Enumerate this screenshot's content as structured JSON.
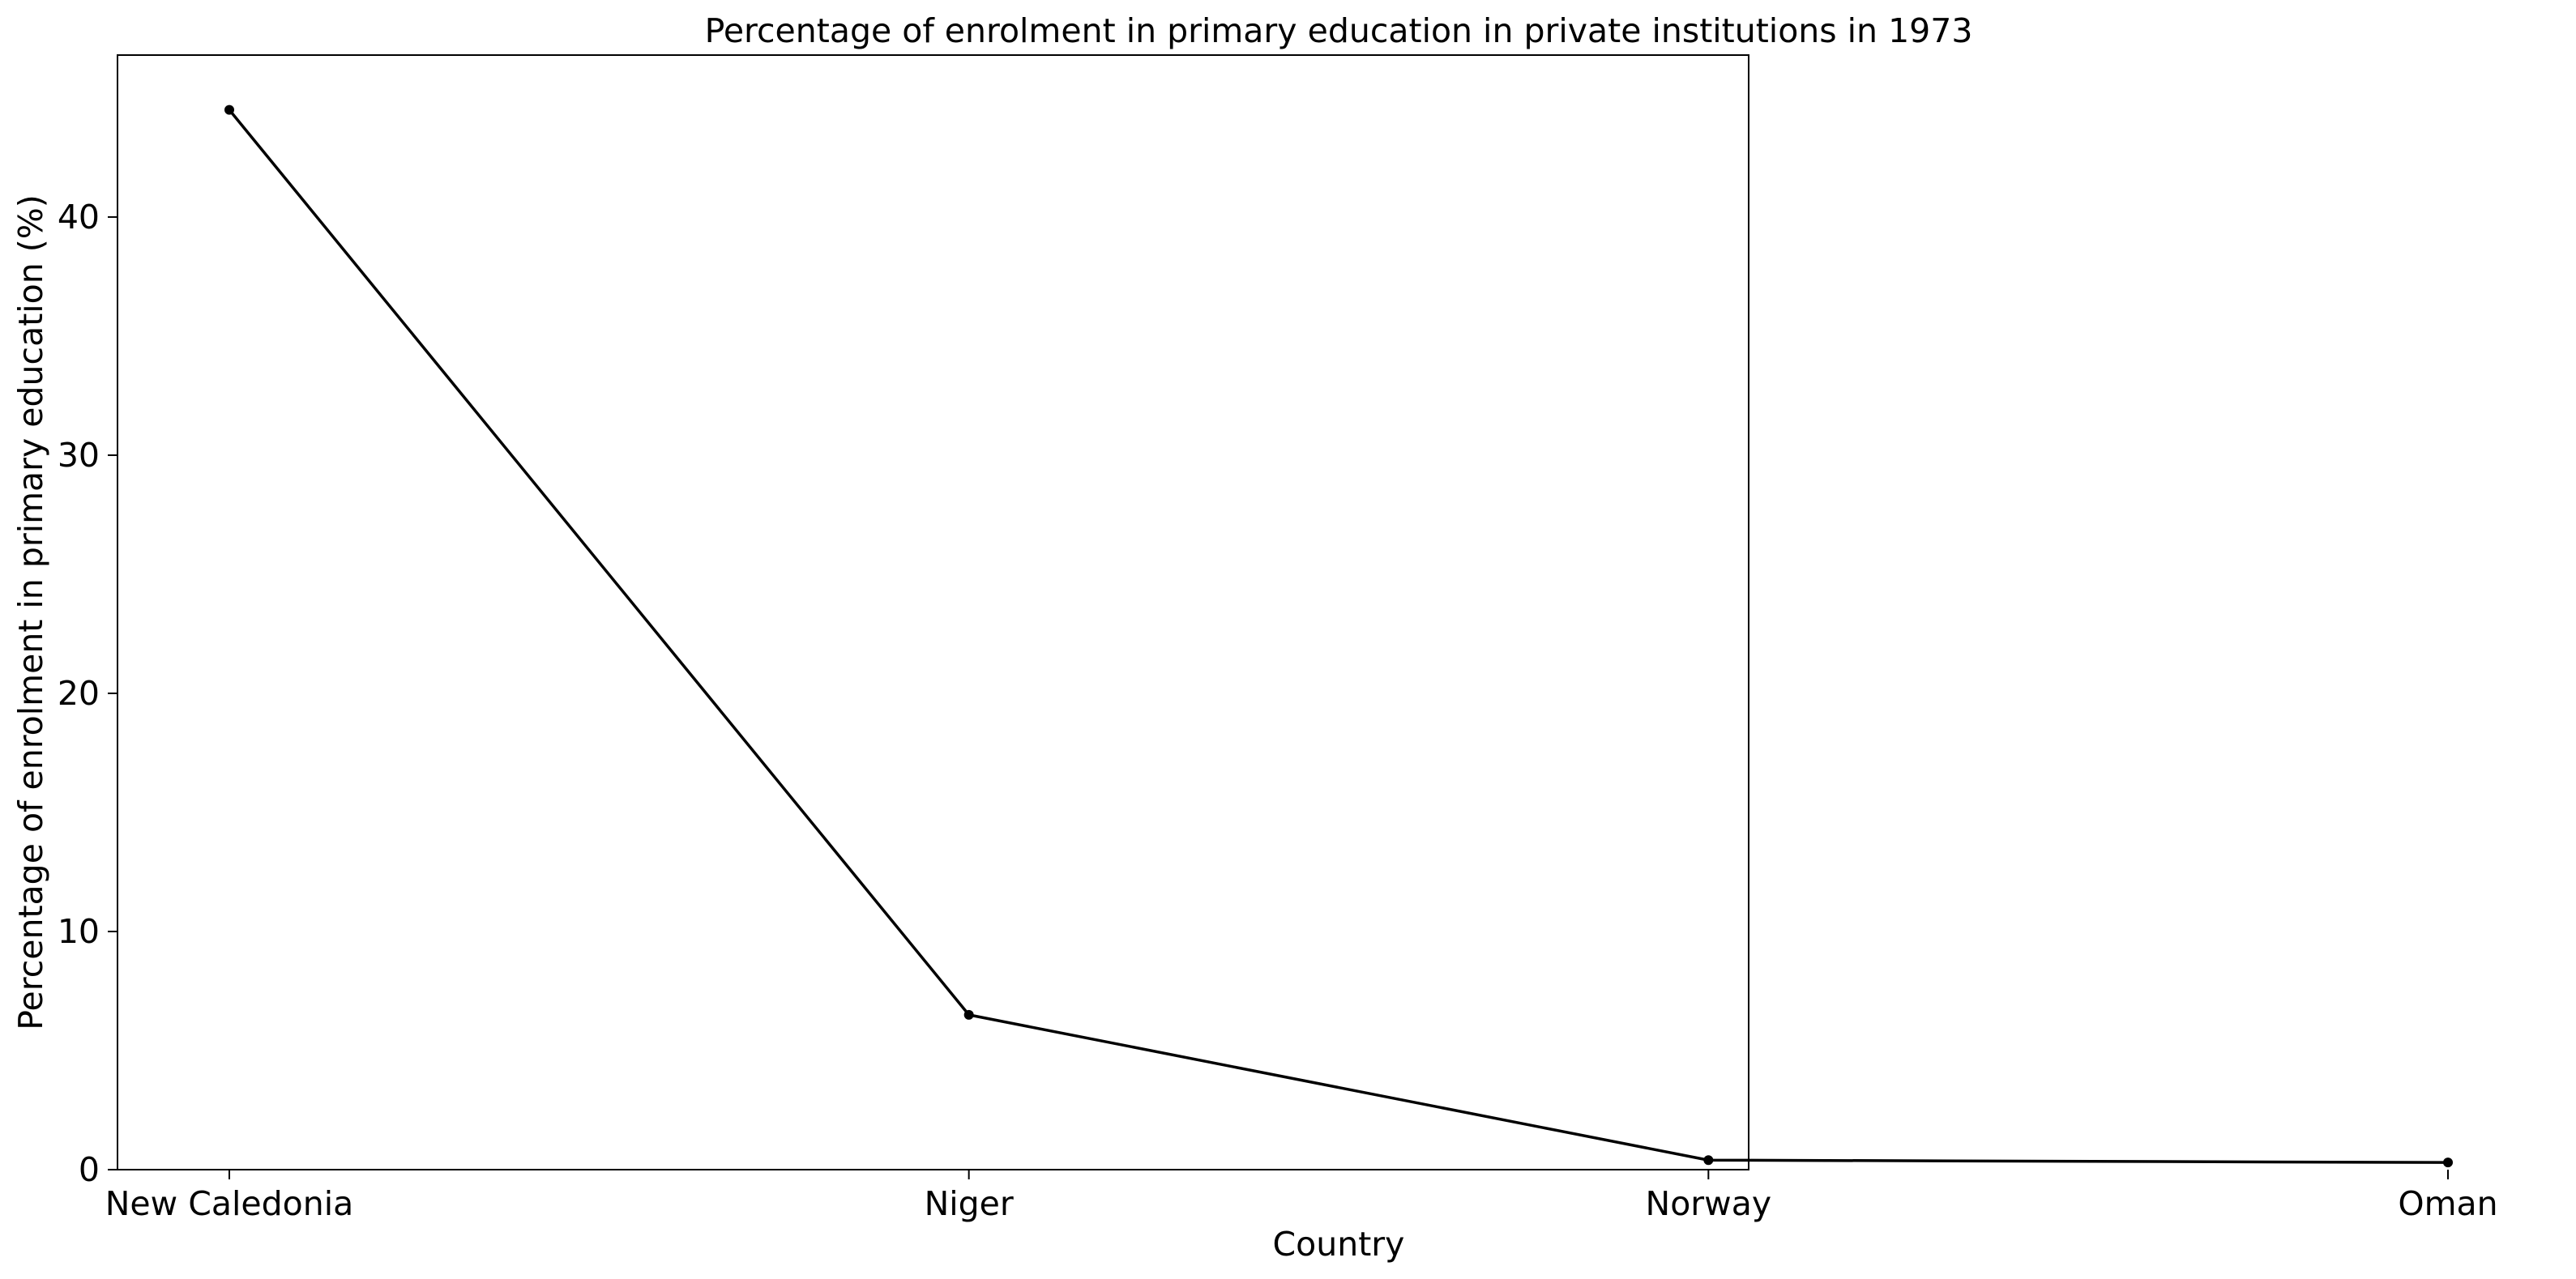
{
  "chart_data": {
    "type": "line",
    "title": "Percentage of enrolment in primary education in private institutions in 1973",
    "xlabel": "Country",
    "ylabel": "Percentage of enrolment in primary education (%)",
    "categories": [
      "New Caledonia",
      "Niger",
      "Norway",
      "Oman"
    ],
    "series": [
      {
        "values": [
          44.5,
          6.5,
          0.4,
          0.3
        ]
      }
    ],
    "ylim": [
      0,
      46.8
    ],
    "yticks": [
      0,
      10,
      20,
      30,
      40
    ],
    "grid": false,
    "line_color": "#000000",
    "marker": "dot"
  }
}
